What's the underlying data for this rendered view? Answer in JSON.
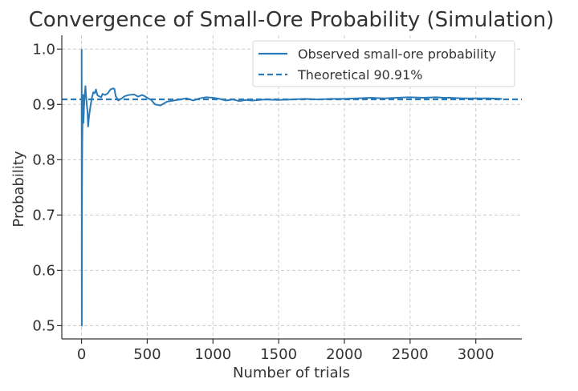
{
  "chart_data": {
    "type": "line",
    "title": "Convergence of Small-Ore Probability (Simulation)",
    "xlabel": "Number of trials",
    "ylabel": "Probability",
    "xlim": [
      -150,
      3350
    ],
    "ylim": [
      0.476,
      1.025
    ],
    "xticks": [
      0,
      500,
      1000,
      1500,
      2000,
      2500,
      3000
    ],
    "yticks": [
      0.5,
      0.6,
      0.7,
      0.8,
      0.9,
      1.0
    ],
    "xtick_labels": [
      "0",
      "500",
      "1000",
      "1500",
      "2000",
      "2500",
      "3000"
    ],
    "ytick_labels": [
      "0.5",
      "0.6",
      "0.7",
      "0.8",
      "0.9",
      "1.0"
    ],
    "grid": true,
    "legend_position": "top-right",
    "series": [
      {
        "name": "Observed small-ore probability",
        "style": "solid",
        "color": "#2b7bb9",
        "x": [
          1,
          2,
          3,
          4,
          5,
          6,
          8,
          10,
          12,
          15,
          18,
          20,
          25,
          30,
          35,
          40,
          45,
          50,
          55,
          60,
          70,
          80,
          90,
          100,
          110,
          120,
          130,
          140,
          150,
          160,
          170,
          180,
          200,
          220,
          240,
          250,
          260,
          280,
          300,
          330,
          360,
          400,
          430,
          460,
          480,
          500,
          530,
          560,
          600,
          650,
          700,
          750,
          800,
          850,
          900,
          950,
          1000,
          1050,
          1100,
          1150,
          1200,
          1250,
          1300,
          1400,
          1500,
          1600,
          1700,
          1800,
          1900,
          2000,
          2100,
          2200,
          2300,
          2400,
          2500,
          2600,
          2700,
          2750,
          2800,
          2900,
          3000,
          3100,
          3200
        ],
        "values": [
          1.0,
          0.5,
          0.667,
          0.75,
          0.8,
          0.833,
          0.875,
          0.9,
          0.917,
          0.867,
          0.889,
          0.9,
          0.92,
          0.933,
          0.914,
          0.9,
          0.889,
          0.86,
          0.873,
          0.883,
          0.9,
          0.913,
          0.922,
          0.92,
          0.927,
          0.917,
          0.915,
          0.914,
          0.913,
          0.919,
          0.918,
          0.917,
          0.92,
          0.927,
          0.929,
          0.928,
          0.915,
          0.907,
          0.91,
          0.915,
          0.917,
          0.918,
          0.914,
          0.917,
          0.915,
          0.912,
          0.908,
          0.9,
          0.898,
          0.905,
          0.907,
          0.909,
          0.911,
          0.907,
          0.911,
          0.913,
          0.912,
          0.91,
          0.907,
          0.909,
          0.906,
          0.908,
          0.907,
          0.909,
          0.908,
          0.909,
          0.91,
          0.909,
          0.91,
          0.91,
          0.911,
          0.912,
          0.911,
          0.912,
          0.913,
          0.912,
          0.913,
          0.912,
          0.912,
          0.911,
          0.911,
          0.911,
          0.91
        ]
      },
      {
        "name": "Theoretical 90.91%",
        "style": "dashed",
        "color": "#2b7bb9",
        "value": 0.9091
      }
    ]
  }
}
